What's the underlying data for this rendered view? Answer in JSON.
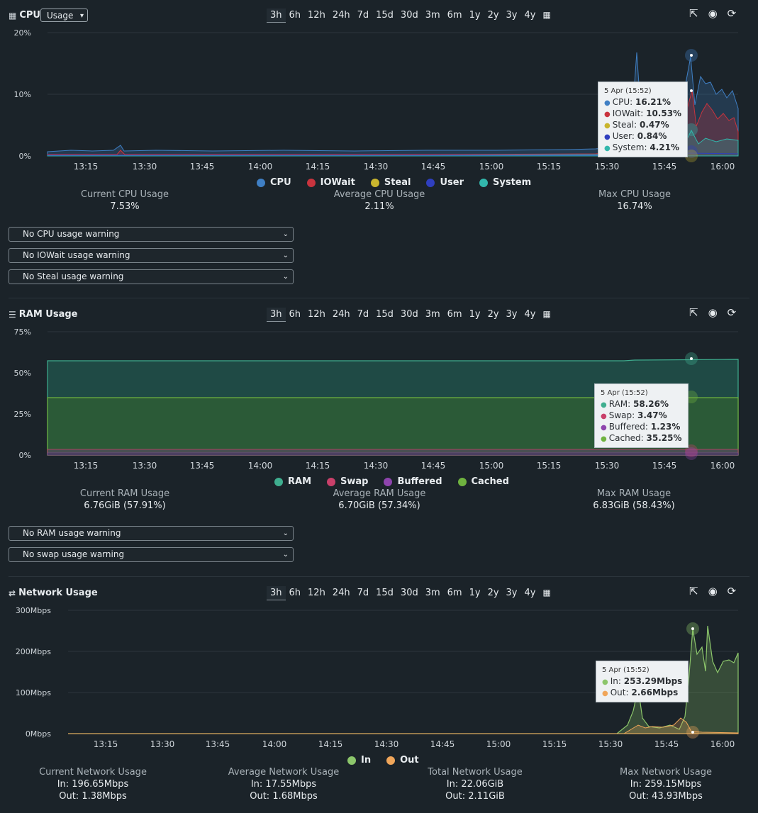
{
  "time_ranges": [
    "3h",
    "6h",
    "12h",
    "24h",
    "7d",
    "15d",
    "30d",
    "3m",
    "6m",
    "1y",
    "2y",
    "3y",
    "4y"
  ],
  "tool_icons": [
    "external-link-icon",
    "eye-icon",
    "refresh-icon",
    "calendar-icon"
  ],
  "x_ticks": [
    "13:15",
    "13:30",
    "13:45",
    "14:00",
    "14:15",
    "14:30",
    "14:45",
    "15:00",
    "15:15",
    "15:30",
    "15:45",
    "16:00"
  ],
  "cpu": {
    "title": "CPU",
    "mode_select": "Usage",
    "y_ticks": [
      "20%",
      "10%",
      "0%"
    ],
    "legend": [
      {
        "name": "CPU",
        "color": "#3f7fc4"
      },
      {
        "name": "IOWait",
        "color": "#c9343e"
      },
      {
        "name": "Steal",
        "color": "#c9b52e"
      },
      {
        "name": "User",
        "color": "#2f3fbf"
      },
      {
        "name": "System",
        "color": "#32b7ac"
      }
    ],
    "tooltip": {
      "date": "5 Apr (15:52)",
      "rows": [
        {
          "label": "CPU:",
          "value": "16.21%",
          "color": "#3f7fc4"
        },
        {
          "label": "IOWait:",
          "value": "10.53%",
          "color": "#c9343e"
        },
        {
          "label": "Steal:",
          "value": "0.47%",
          "color": "#c9b52e"
        },
        {
          "label": "User:",
          "value": "0.84%",
          "color": "#2f3fbf"
        },
        {
          "label": "System:",
          "value": "4.21%",
          "color": "#32b7ac"
        }
      ]
    },
    "stats": [
      {
        "label": "Current CPU Usage",
        "value": "7.53%"
      },
      {
        "label": "Average CPU Usage",
        "value": "2.11%"
      },
      {
        "label": "Max CPU Usage",
        "value": "16.74%"
      }
    ],
    "warnings": [
      "No CPU usage warning",
      "No IOWait usage warning",
      "No Steal usage warning"
    ]
  },
  "ram": {
    "title": "RAM Usage",
    "y_ticks": [
      "75%",
      "50%",
      "25%",
      "0%"
    ],
    "legend": [
      {
        "name": "RAM",
        "color": "#3fae8f"
      },
      {
        "name": "Swap",
        "color": "#c9406a"
      },
      {
        "name": "Buffered",
        "color": "#8e44ad"
      },
      {
        "name": "Cached",
        "color": "#6fb23f"
      }
    ],
    "tooltip": {
      "date": "5 Apr (15:52)",
      "rows": [
        {
          "label": "RAM:",
          "value": "58.26%",
          "color": "#3fae8f"
        },
        {
          "label": "Swap:",
          "value": "3.47%",
          "color": "#c9406a"
        },
        {
          "label": "Buffered:",
          "value": "1.23%",
          "color": "#8e44ad"
        },
        {
          "label": "Cached:",
          "value": "35.25%",
          "color": "#6fb23f"
        }
      ]
    },
    "stats": [
      {
        "label": "Current RAM Usage",
        "value": "6.76GiB (57.91%)"
      },
      {
        "label": "Average RAM Usage",
        "value": "6.70GiB (57.34%)"
      },
      {
        "label": "Max RAM Usage",
        "value": "6.83GiB (58.43%)"
      }
    ],
    "warnings": [
      "No RAM usage warning",
      "No swap usage warning"
    ]
  },
  "network": {
    "title": "Network Usage",
    "y_ticks": [
      "300Mbps",
      "200Mbps",
      "100Mbps",
      "0Mbps"
    ],
    "legend": [
      {
        "name": "In",
        "color": "#8cc66b"
      },
      {
        "name": "Out",
        "color": "#f0a65a"
      }
    ],
    "tooltip": {
      "date": "5 Apr (15:52)",
      "rows": [
        {
          "label": "In:",
          "value": "253.29Mbps",
          "color": "#8cc66b"
        },
        {
          "label": "Out:",
          "value": "2.66Mbps",
          "color": "#f0a65a"
        }
      ]
    },
    "stats": [
      {
        "label": "Current Network Usage",
        "in": "In: 196.65Mbps",
        "out": "Out: 1.38Mbps"
      },
      {
        "label": "Average Network Usage",
        "in": "In: 17.55Mbps",
        "out": "Out: 1.68Mbps"
      },
      {
        "label": "Total Network Usage",
        "in": "In: 22.06GiB",
        "out": "Out: 2.11GiB"
      },
      {
        "label": "Max Network Usage",
        "in": "In: 259.15Mbps",
        "out": "Out: 43.93Mbps"
      }
    ]
  }
}
